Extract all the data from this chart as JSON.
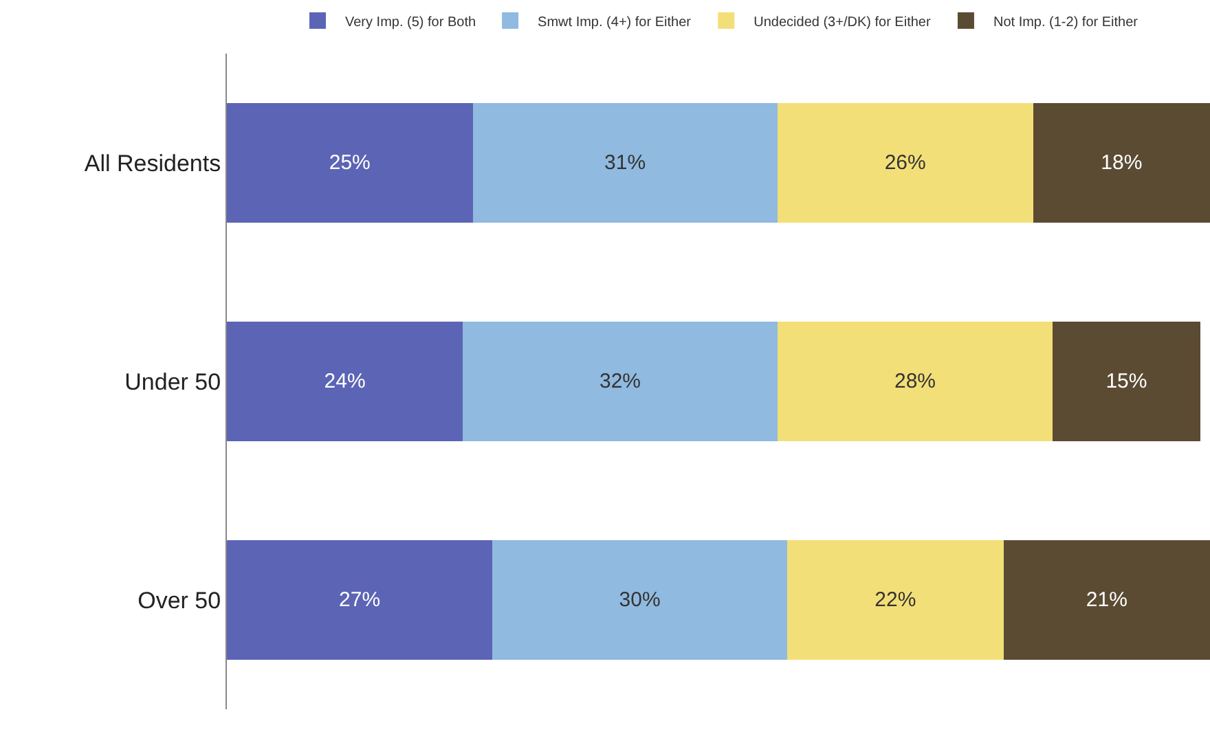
{
  "chart_data": {
    "type": "bar",
    "orientation": "horizontal",
    "stacked": true,
    "legend": "top",
    "tick_labels": "y",
    "grid": false,
    "categories": [
      "All Residents",
      "Under 50",
      "Over 50"
    ],
    "series": [
      {
        "name": "Very Imp. (5) for Both",
        "color": "#5c64b5",
        "values": [
          25,
          24,
          27
        ],
        "value_labels": [
          "25%",
          "24%",
          "27%"
        ]
      },
      {
        "name": "Smwt Imp. (4+) for Either",
        "color": "#90badf",
        "values": [
          31,
          32,
          30
        ],
        "value_labels": [
          "31%",
          "32%",
          "30%"
        ]
      },
      {
        "name": "Undecided (3+/DK) for Either",
        "color": "#f3df78",
        "values": [
          26,
          28,
          22
        ],
        "value_labels": [
          "26%",
          "28%",
          "22%"
        ]
      },
      {
        "name": "Not Imp. (1-2) for Either",
        "color": "#5b4b33",
        "values": [
          18,
          15,
          21
        ],
        "value_labels": [
          "18%",
          "15%",
          "21%"
        ]
      }
    ]
  }
}
